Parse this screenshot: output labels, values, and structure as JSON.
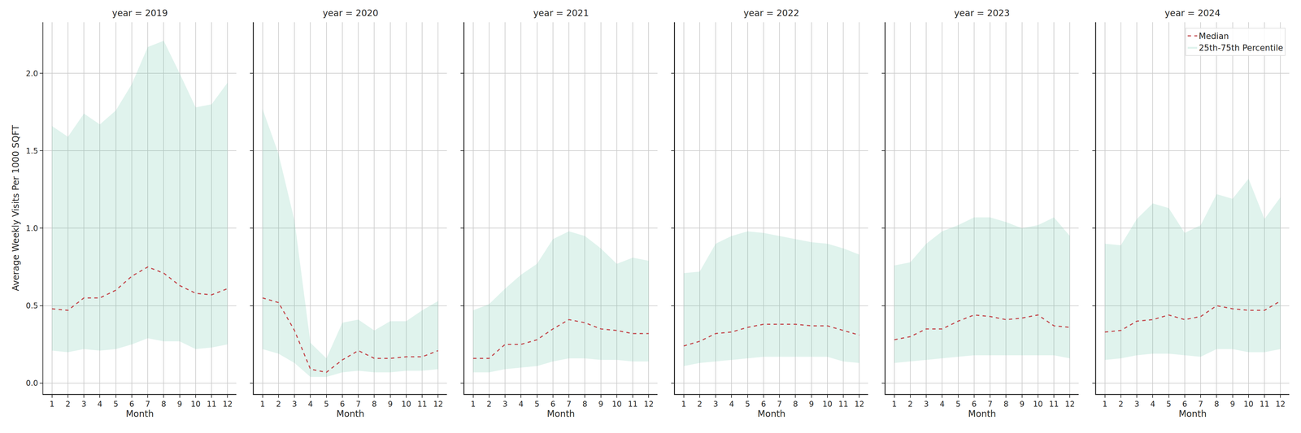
{
  "chart_data": [
    {
      "type": "line",
      "title": "year = 2019",
      "xlabel": "Month",
      "ylabel": "Average Weekly Visits Per 1000 SQFT",
      "x": [
        1,
        2,
        3,
        4,
        5,
        6,
        7,
        8,
        9,
        10,
        11,
        12
      ],
      "xlim": [
        0.45,
        12.55
      ],
      "xticks": [
        1,
        2,
        3,
        4,
        5,
        6,
        7,
        8,
        9,
        10,
        11,
        12
      ],
      "ylim": [
        -0.07,
        2.33
      ],
      "yticks": [
        {
          "value": 0,
          "label": "0.0"
        },
        {
          "value": 0.5,
          "label": "0.5"
        },
        {
          "value": 1,
          "label": "1.0"
        },
        {
          "value": 1.5,
          "label": "1.5"
        },
        {
          "value": 2,
          "label": "2.0"
        }
      ],
      "grid": true,
      "series": [
        {
          "name": "Median",
          "type": "line",
          "color": "#c44e52",
          "line_style": "dashed",
          "values": [
            0.48,
            0.47,
            0.55,
            0.55,
            0.6,
            0.69,
            0.75,
            0.71,
            0.63,
            0.58,
            0.57,
            0.61
          ]
        },
        {
          "name": "25th-75th Percentile",
          "type": "band",
          "color": "#66c2a5",
          "lower": [
            0.21,
            0.2,
            0.22,
            0.21,
            0.22,
            0.25,
            0.29,
            0.27,
            0.27,
            0.22,
            0.23,
            0.25
          ],
          "upper": [
            1.66,
            1.59,
            1.74,
            1.67,
            1.76,
            1.93,
            2.17,
            2.21,
            2.0,
            1.78,
            1.8,
            1.94
          ]
        }
      ]
    },
    {
      "type": "line",
      "title": "year = 2020",
      "xlabel": "Month",
      "tick_labels": "x",
      "x": [
        1,
        2,
        3,
        4,
        5,
        6,
        7,
        8,
        9,
        10,
        11,
        12
      ],
      "xlim": [
        0.45,
        12.55
      ],
      "xticks": [
        1,
        2,
        3,
        4,
        5,
        6,
        7,
        8,
        9,
        10,
        11,
        12
      ],
      "ylim": [
        -0.07,
        2.33
      ],
      "yticks": [
        {
          "value": 0,
          "label": "0.0"
        },
        {
          "value": 0.5,
          "label": "0.5"
        },
        {
          "value": 1,
          "label": "1.0"
        },
        {
          "value": 1.5,
          "label": "1.5"
        },
        {
          "value": 2,
          "label": "2.0"
        }
      ],
      "grid": true,
      "series": [
        {
          "name": "Median",
          "type": "line",
          "color": "#c44e52",
          "line_style": "dashed",
          "values": [
            0.55,
            0.52,
            0.34,
            0.09,
            0.07,
            0.15,
            0.21,
            0.16,
            0.16,
            0.17,
            0.17,
            0.21
          ]
        },
        {
          "name": "25th-75th Percentile",
          "type": "band",
          "color": "#66c2a5",
          "lower": [
            0.22,
            0.19,
            0.13,
            0.04,
            0.04,
            0.07,
            0.08,
            0.07,
            0.07,
            0.08,
            0.08,
            0.09
          ],
          "upper": [
            1.77,
            1.48,
            1.05,
            0.26,
            0.16,
            0.39,
            0.41,
            0.34,
            0.4,
            0.4,
            0.47,
            0.53
          ]
        }
      ]
    },
    {
      "type": "line",
      "title": "year = 2021",
      "xlabel": "Month",
      "tick_labels": "x",
      "x": [
        1,
        2,
        3,
        4,
        5,
        6,
        7,
        8,
        9,
        10,
        11,
        12
      ],
      "xlim": [
        0.45,
        12.55
      ],
      "xticks": [
        1,
        2,
        3,
        4,
        5,
        6,
        7,
        8,
        9,
        10,
        11,
        12
      ],
      "ylim": [
        -0.07,
        2.33
      ],
      "yticks": [
        {
          "value": 0,
          "label": "0.0"
        },
        {
          "value": 0.5,
          "label": "0.5"
        },
        {
          "value": 1,
          "label": "1.0"
        },
        {
          "value": 1.5,
          "label": "1.5"
        },
        {
          "value": 2,
          "label": "2.0"
        }
      ],
      "grid": true,
      "series": [
        {
          "name": "Median",
          "type": "line",
          "color": "#c44e52",
          "line_style": "dashed",
          "values": [
            0.16,
            0.16,
            0.25,
            0.25,
            0.28,
            0.35,
            0.41,
            0.39,
            0.35,
            0.34,
            0.32,
            0.32
          ]
        },
        {
          "name": "25th-75th Percentile",
          "type": "band",
          "color": "#66c2a5",
          "lower": [
            0.07,
            0.07,
            0.09,
            0.1,
            0.11,
            0.14,
            0.16,
            0.16,
            0.15,
            0.15,
            0.14,
            0.14
          ],
          "upper": [
            0.47,
            0.51,
            0.61,
            0.7,
            0.77,
            0.93,
            0.98,
            0.95,
            0.87,
            0.77,
            0.81,
            0.79
          ]
        }
      ]
    },
    {
      "type": "line",
      "title": "year = 2022",
      "xlabel": "Month",
      "tick_labels": "x",
      "x": [
        1,
        2,
        3,
        4,
        5,
        6,
        7,
        8,
        9,
        10,
        11,
        12
      ],
      "xlim": [
        0.45,
        12.55
      ],
      "xticks": [
        1,
        2,
        3,
        4,
        5,
        6,
        7,
        8,
        9,
        10,
        11,
        12
      ],
      "ylim": [
        -0.07,
        2.33
      ],
      "yticks": [
        {
          "value": 0,
          "label": "0.0"
        },
        {
          "value": 0.5,
          "label": "0.5"
        },
        {
          "value": 1,
          "label": "1.0"
        },
        {
          "value": 1.5,
          "label": "1.5"
        },
        {
          "value": 2,
          "label": "2.0"
        }
      ],
      "grid": true,
      "series": [
        {
          "name": "Median",
          "type": "line",
          "color": "#c44e52",
          "line_style": "dashed",
          "values": [
            0.24,
            0.27,
            0.32,
            0.33,
            0.36,
            0.38,
            0.38,
            0.38,
            0.37,
            0.37,
            0.34,
            0.31
          ]
        },
        {
          "name": "25th-75th Percentile",
          "type": "band",
          "color": "#66c2a5",
          "lower": [
            0.11,
            0.13,
            0.14,
            0.15,
            0.16,
            0.17,
            0.17,
            0.17,
            0.17,
            0.17,
            0.14,
            0.13
          ],
          "upper": [
            0.71,
            0.72,
            0.9,
            0.95,
            0.98,
            0.97,
            0.95,
            0.93,
            0.91,
            0.9,
            0.87,
            0.83
          ]
        }
      ]
    },
    {
      "type": "line",
      "title": "year = 2023",
      "xlabel": "Month",
      "tick_labels": "x",
      "x": [
        1,
        2,
        3,
        4,
        5,
        6,
        7,
        8,
        9,
        10,
        11,
        12
      ],
      "xlim": [
        0.45,
        12.55
      ],
      "xticks": [
        1,
        2,
        3,
        4,
        5,
        6,
        7,
        8,
        9,
        10,
        11,
        12
      ],
      "ylim": [
        -0.07,
        2.33
      ],
      "yticks": [
        {
          "value": 0,
          "label": "0.0"
        },
        {
          "value": 0.5,
          "label": "0.5"
        },
        {
          "value": 1,
          "label": "1.0"
        },
        {
          "value": 1.5,
          "label": "1.5"
        },
        {
          "value": 2,
          "label": "2.0"
        }
      ],
      "grid": true,
      "series": [
        {
          "name": "Median",
          "type": "line",
          "color": "#c44e52",
          "line_style": "dashed",
          "values": [
            0.28,
            0.3,
            0.35,
            0.35,
            0.4,
            0.44,
            0.43,
            0.41,
            0.42,
            0.44,
            0.37,
            0.36
          ]
        },
        {
          "name": "25th-75th Percentile",
          "type": "band",
          "color": "#66c2a5",
          "lower": [
            0.13,
            0.14,
            0.15,
            0.16,
            0.17,
            0.18,
            0.18,
            0.18,
            0.18,
            0.18,
            0.18,
            0.16
          ],
          "upper": [
            0.76,
            0.78,
            0.9,
            0.98,
            1.02,
            1.07,
            1.07,
            1.04,
            1.0,
            1.02,
            1.07,
            0.95
          ]
        }
      ]
    },
    {
      "type": "line",
      "title": "year = 2024",
      "xlabel": "Month",
      "tick_labels": "x",
      "legend": "upper right",
      "x": [
        1,
        2,
        3,
        4,
        5,
        6,
        7,
        8,
        9,
        10,
        11,
        12
      ],
      "xlim": [
        0.45,
        12.55
      ],
      "xticks": [
        1,
        2,
        3,
        4,
        5,
        6,
        7,
        8,
        9,
        10,
        11,
        12
      ],
      "ylim": [
        -0.07,
        2.33
      ],
      "yticks": [
        {
          "value": 0,
          "label": "0.0"
        },
        {
          "value": 0.5,
          "label": "0.5"
        },
        {
          "value": 1,
          "label": "1.0"
        },
        {
          "value": 1.5,
          "label": "1.5"
        },
        {
          "value": 2,
          "label": "2.0"
        }
      ],
      "grid": true,
      "series": [
        {
          "name": "Median",
          "type": "line",
          "color": "#c44e52",
          "line_style": "dashed",
          "values": [
            0.33,
            0.34,
            0.4,
            0.41,
            0.44,
            0.41,
            0.43,
            0.5,
            0.48,
            0.47,
            0.47,
            0.53
          ]
        },
        {
          "name": "25th-75th Percentile",
          "type": "band",
          "color": "#66c2a5",
          "lower": [
            0.15,
            0.16,
            0.18,
            0.19,
            0.19,
            0.18,
            0.17,
            0.22,
            0.22,
            0.2,
            0.2,
            0.22
          ],
          "upper": [
            0.9,
            0.89,
            1.06,
            1.16,
            1.13,
            0.97,
            1.02,
            1.22,
            1.19,
            1.32,
            1.06,
            1.2
          ]
        }
      ]
    }
  ]
}
